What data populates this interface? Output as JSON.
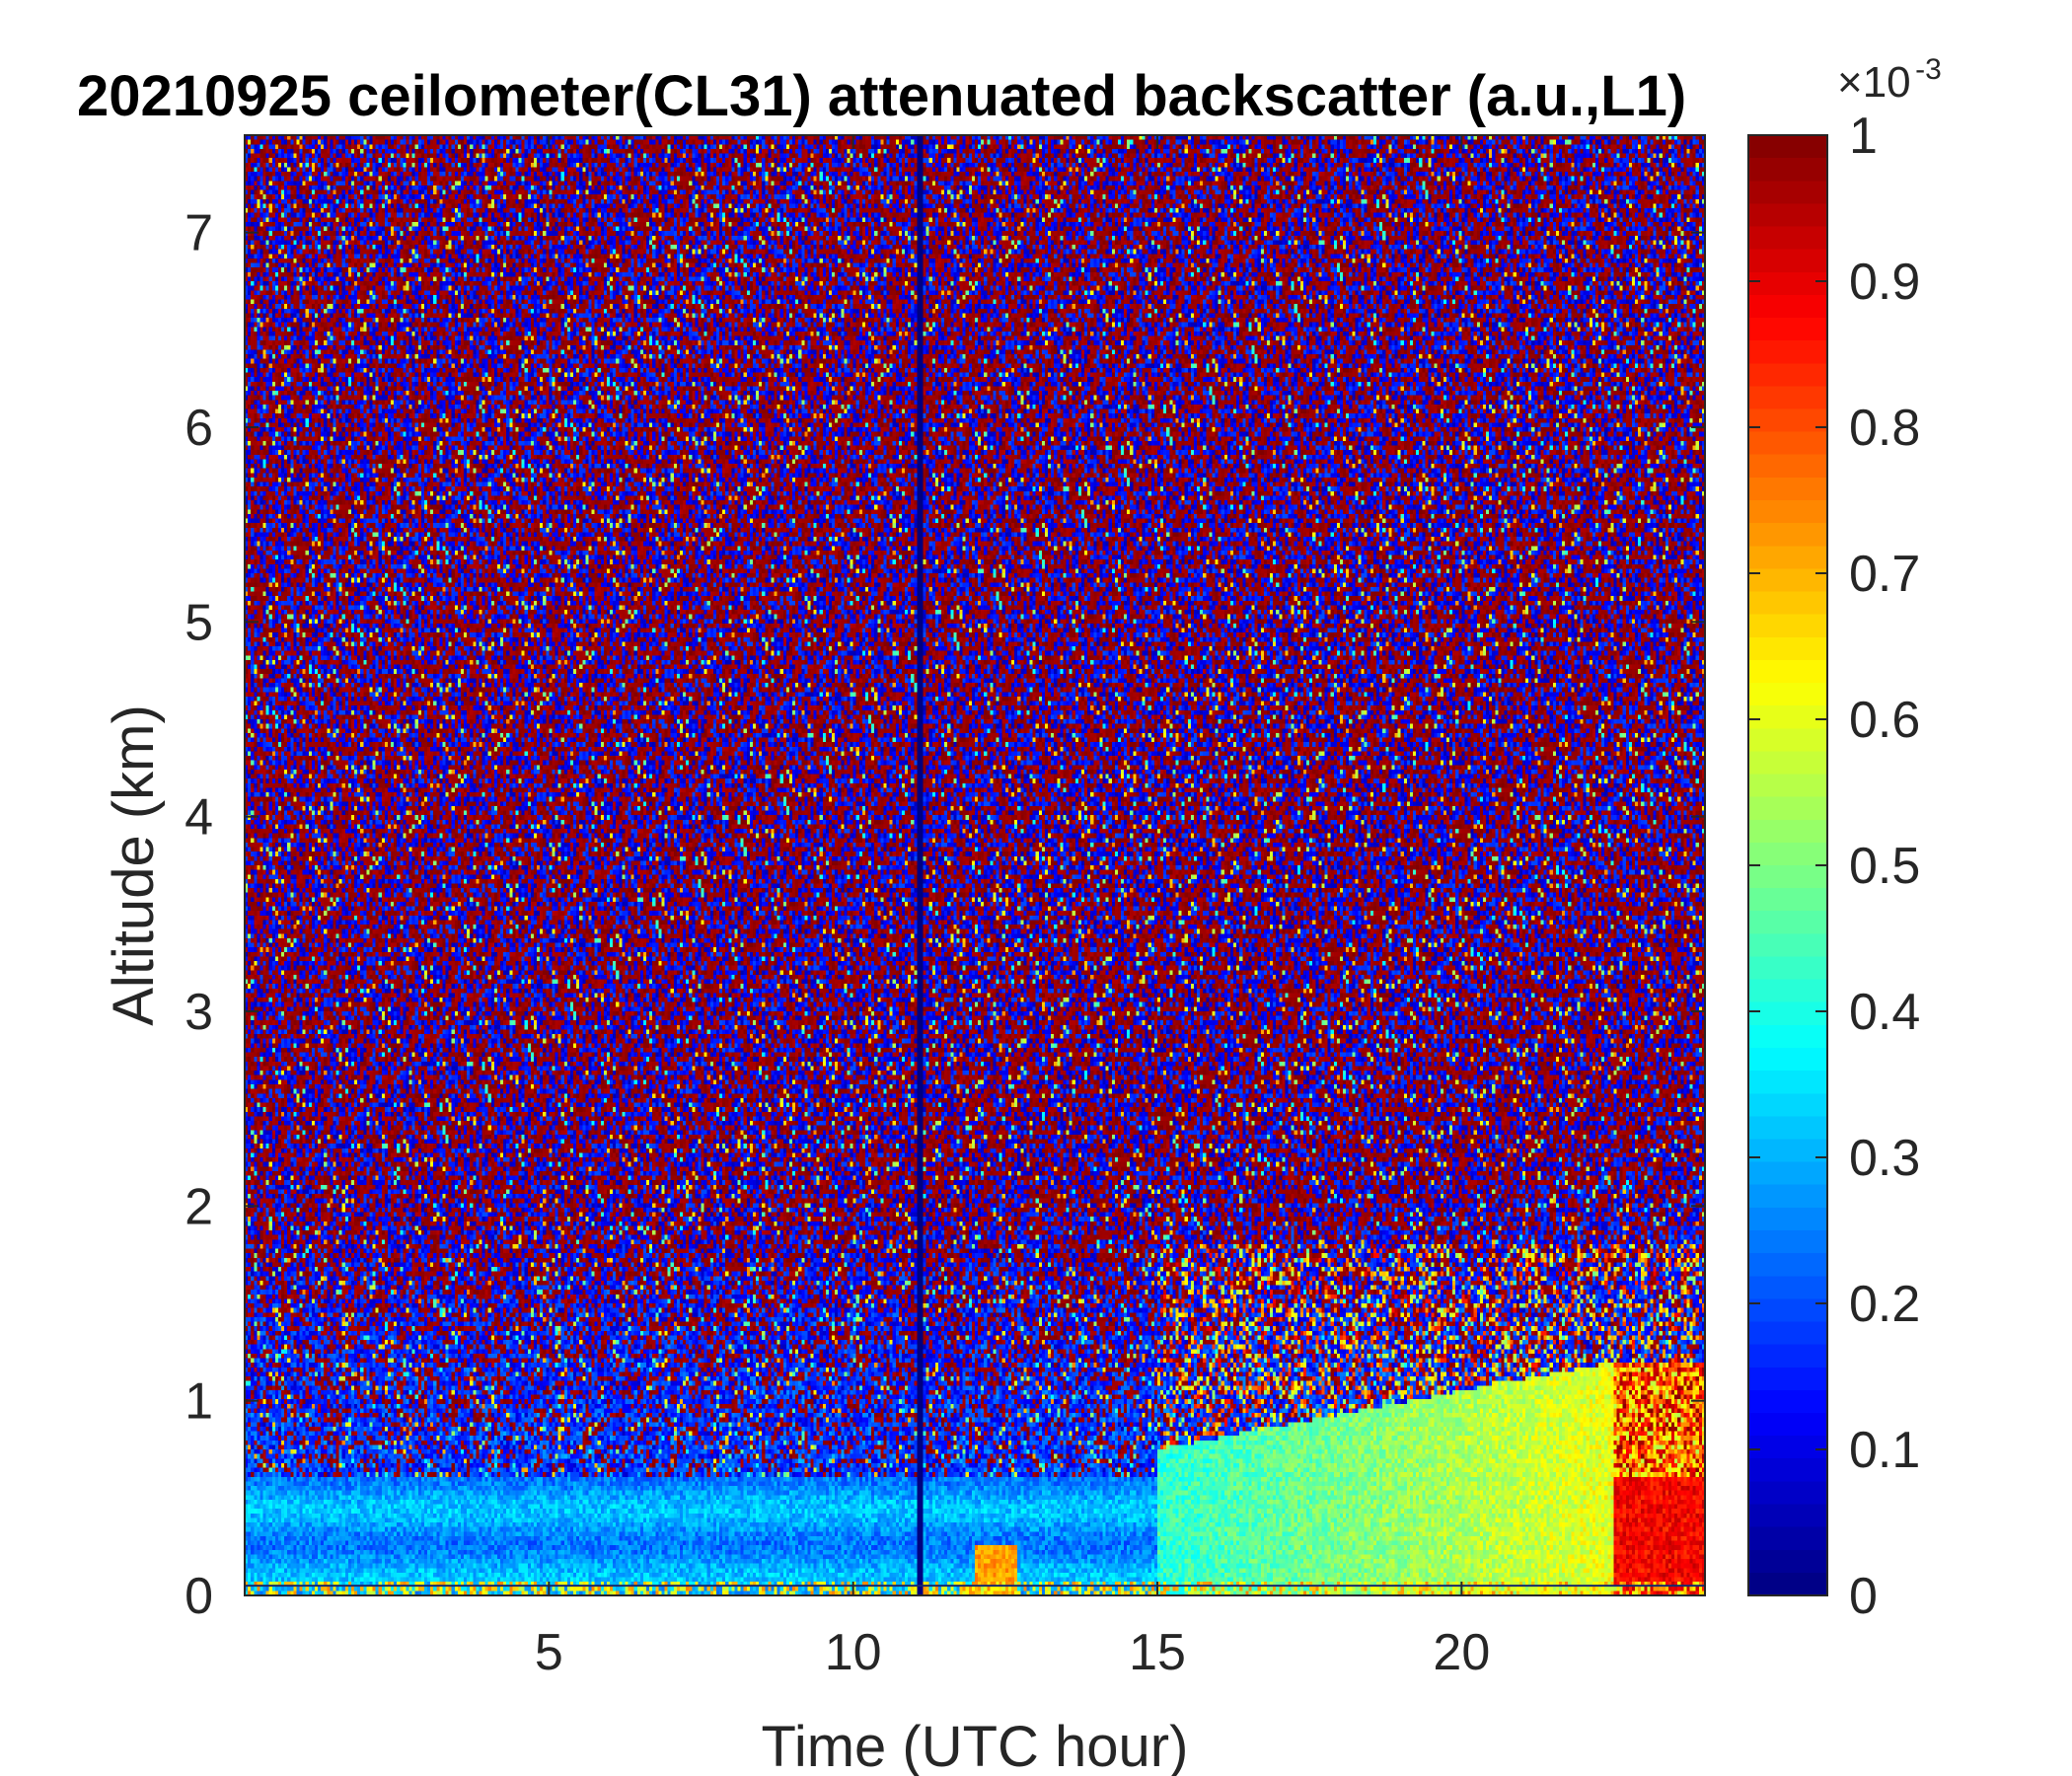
{
  "chart_data": {
    "type": "heatmap",
    "title": "20210925 ceilometer(CL31) attenuated backscatter (a.u.,L1)",
    "xlabel": "Time (UTC hour)",
    "ylabel": "Altitude (km)",
    "xlim": [
      0,
      24
    ],
    "ylim": [
      0,
      7.5
    ],
    "xticks": [
      5,
      10,
      15,
      20
    ],
    "yticks": [
      0,
      1,
      2,
      3,
      4,
      5,
      6,
      7
    ],
    "colormap": "jet",
    "colorbar": {
      "label_multiplier": "×10",
      "label_exponent": "-3",
      "clim": [
        0,
        1
      ],
      "ticks": [
        0,
        0.1,
        0.2,
        0.3,
        0.4,
        0.5,
        0.6,
        0.7,
        0.8,
        0.9,
        1
      ],
      "tick_labels": [
        "0",
        "0.1",
        "0.2",
        "0.3",
        "0.4",
        "0.5",
        "0.6",
        "0.7",
        "0.8",
        "0.9",
        "1"
      ]
    },
    "features": [
      {
        "description": "noise above ~1.5 km: random mix of low (blue) and saturated (red) values"
      },
      {
        "description": "boundary layer aerosol band 0–0.6 km, values ~0.3 from 0–15 h"
      },
      {
        "description": "enhanced backscatter ~0.5–0.6 between 15–22.5 h, 0–1 km"
      },
      {
        "description": "strong signal ~0.9 after 22.5 h, below ~0.6 km"
      },
      {
        "description": "small enhancement ~0.7 near 12–12.7 h below 0.25 km"
      },
      {
        "description": "data gap line near 11.1 h"
      }
    ]
  }
}
